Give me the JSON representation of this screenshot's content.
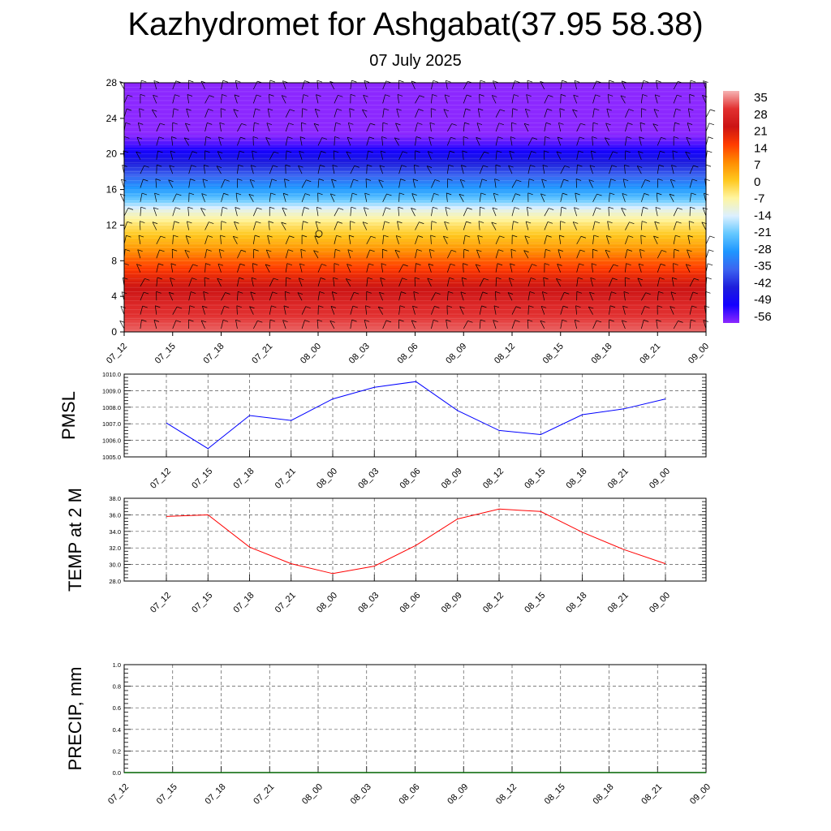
{
  "header": {
    "title": "Kazhydromet for Ashgabat(37.95 58.38)",
    "subtitle": "07 July 2025"
  },
  "chart_data": [
    {
      "type": "heatmap",
      "name": "temperature-wind-profile",
      "x_tick_labels": [
        "07_12",
        "07_15",
        "07_18",
        "07_21",
        "08_00",
        "08_03",
        "08_06",
        "08_09",
        "08_12",
        "08_15",
        "08_18",
        "08_21",
        "09_00"
      ],
      "y_tick_labels": [
        "0",
        "4",
        "8",
        "12",
        "16",
        "20",
        "24",
        "28"
      ],
      "ylim": [
        0,
        28
      ],
      "colorbar": {
        "labels": [
          "35",
          "28",
          "21",
          "14",
          "7",
          "0",
          "-7",
          "-14",
          "-21",
          "-28",
          "-35",
          "-42",
          "-49",
          "-56"
        ],
        "stops": [
          {
            "value": 35,
            "color": "#f6b4b4"
          },
          {
            "value": 28,
            "color": "#e23030"
          },
          {
            "value": 21,
            "color": "#cc1414"
          },
          {
            "value": 14,
            "color": "#ff3c00"
          },
          {
            "value": 7,
            "color": "#ff8c00"
          },
          {
            "value": 0,
            "color": "#ffc81e"
          },
          {
            "value": -7,
            "color": "#fff5a0"
          },
          {
            "value": -14,
            "color": "#dcf0ff"
          },
          {
            "value": -21,
            "color": "#64c8ff"
          },
          {
            "value": -28,
            "color": "#1e96ff"
          },
          {
            "value": -35,
            "color": "#3c64f0"
          },
          {
            "value": -42,
            "color": "#1e1edc"
          },
          {
            "value": -49,
            "color": "#1400ff"
          },
          {
            "value": -56,
            "color": "#8c28ff"
          }
        ]
      },
      "profile": [
        {
          "level": 0,
          "value": 31
        },
        {
          "level": 3,
          "value": 26
        },
        {
          "level": 6,
          "value": 18
        },
        {
          "level": 8,
          "value": 11
        },
        {
          "level": 10,
          "value": 3
        },
        {
          "level": 12,
          "value": -4
        },
        {
          "level": 13.5,
          "value": -11
        },
        {
          "level": 15,
          "value": -22
        },
        {
          "level": 17,
          "value": -32
        },
        {
          "level": 19,
          "value": -42
        },
        {
          "level": 21,
          "value": -52
        },
        {
          "level": 22.5,
          "value": -57
        },
        {
          "level": 28,
          "value": -58
        }
      ]
    },
    {
      "type": "line",
      "name": "pmsl",
      "ylabel": "PMSL",
      "y_tick_labels": [
        "1005.0",
        "1006.0",
        "1007.0",
        "1008.0",
        "1009.0",
        "1010.0"
      ],
      "ylim": [
        1005,
        1010
      ],
      "x_tick_labels": [
        "07_12",
        "07_15",
        "07_18",
        "07_21",
        "08_00",
        "08_03",
        "08_06",
        "08_09",
        "08_12",
        "08_15",
        "08_18",
        "08_21",
        "09_00"
      ],
      "series": [
        {
          "color": "#0000ff",
          "values": [
            1007.05,
            1005.5,
            1007.5,
            1007.2,
            1008.5,
            1009.2,
            1009.55,
            1007.8,
            1006.6,
            1006.35,
            1007.55,
            1007.9,
            1008.5
          ]
        }
      ]
    },
    {
      "type": "line",
      "name": "temp-2m",
      "ylabel": "TEMP at 2 M",
      "y_tick_labels": [
        "28.0",
        "30.0",
        "32.0",
        "34.0",
        "36.0",
        "38.0"
      ],
      "ylim": [
        28,
        38
      ],
      "x_tick_labels": [
        "07_12",
        "07_15",
        "07_18",
        "07_21",
        "08_00",
        "08_03",
        "08_06",
        "08_09",
        "08_12",
        "08_15",
        "08_18",
        "08_21",
        "09_00"
      ],
      "series": [
        {
          "color": "#ff0000",
          "values": [
            35.8,
            36.0,
            32.1,
            30.1,
            28.9,
            29.8,
            32.3,
            35.5,
            36.7,
            36.4,
            33.9,
            31.8,
            30.1
          ]
        }
      ]
    },
    {
      "type": "line",
      "name": "precip",
      "ylabel": "PRECIP, mm",
      "y_tick_labels": [
        "0.0",
        "0.2",
        "0.4",
        "0.6",
        "0.8",
        "1.0"
      ],
      "ylim": [
        0,
        1
      ],
      "x_tick_labels": [
        "07_12",
        "07_15",
        "07_18",
        "07_21",
        "08_00",
        "08_03",
        "08_06",
        "08_09",
        "08_12",
        "08_15",
        "08_18",
        "08_21",
        "09_00"
      ],
      "series": [
        {
          "color": "#006400",
          "values": [
            0,
            0,
            0,
            0,
            0,
            0,
            0,
            0,
            0,
            0,
            0,
            0,
            0
          ]
        }
      ]
    }
  ]
}
